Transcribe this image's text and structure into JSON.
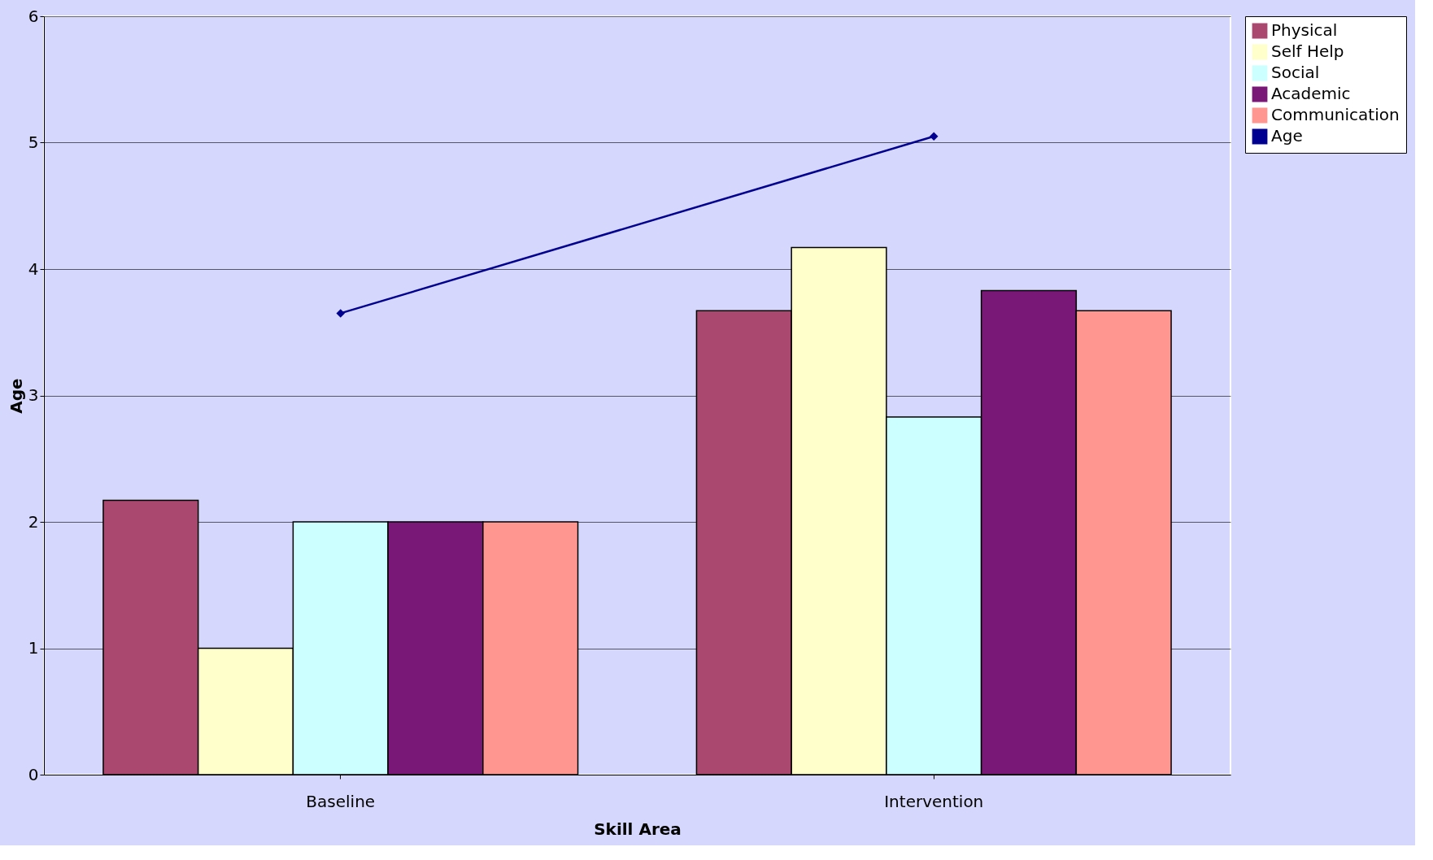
{
  "chart_data": {
    "type": "bar",
    "xlabel": "Skill Area",
    "ylabel": "Age",
    "categories": [
      "Baseline",
      "Intervention"
    ],
    "series": [
      {
        "name": "Physical",
        "color": "#aa4870",
        "values": [
          2.17,
          3.67
        ]
      },
      {
        "name": "Self Help",
        "color": "#ffffcc",
        "values": [
          1.0,
          4.17
        ]
      },
      {
        "name": "Social",
        "color": "#ccffff",
        "values": [
          2.0,
          2.83
        ]
      },
      {
        "name": "Academic",
        "color": "#7a1878",
        "values": [
          2.0,
          3.83
        ]
      },
      {
        "name": "Communication",
        "color": "#ff9690",
        "values": [
          2.0,
          3.67
        ]
      },
      {
        "name": "Age",
        "type": "line",
        "color": "#000090",
        "marker": "diamond",
        "values": [
          3.65,
          5.05
        ]
      }
    ],
    "ylim": [
      0,
      6
    ],
    "yticks": [
      0,
      1,
      2,
      3,
      4,
      5,
      6
    ],
    "grid": "y",
    "legend": "right"
  }
}
